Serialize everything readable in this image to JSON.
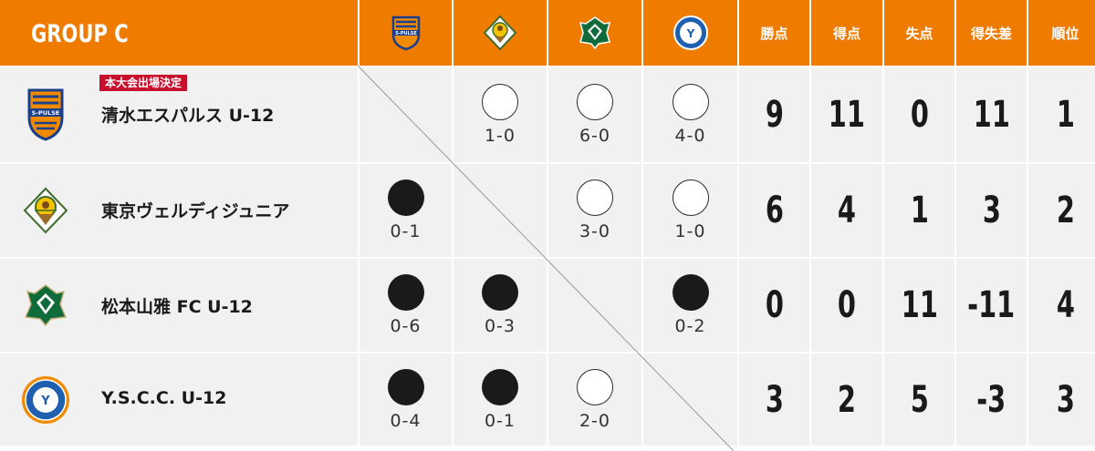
{
  "header": {
    "group_title": "GROUP C",
    "stat_labels": [
      "勝点",
      "得点",
      "失点",
      "得失差",
      "順位"
    ]
  },
  "teams": [
    {
      "name": "清水エスパルス U-12",
      "badge": "本大会出場決定",
      "crest_text": "S-PULSE",
      "results": [
        null,
        {
          "mark": "win",
          "score": "1-0"
        },
        {
          "mark": "win",
          "score": "6-0"
        },
        {
          "mark": "win",
          "score": "4-0"
        }
      ],
      "stats": [
        "9",
        "11",
        "0",
        "11",
        "1"
      ]
    },
    {
      "name": "東京ヴェルディジュニア",
      "badge": "",
      "crest_text": "VERDY",
      "results": [
        {
          "mark": "loss",
          "score": "0-1"
        },
        null,
        {
          "mark": "win",
          "score": "3-0"
        },
        {
          "mark": "win",
          "score": "1-0"
        }
      ],
      "stats": [
        "6",
        "4",
        "1",
        "3",
        "2"
      ]
    },
    {
      "name": "松本山雅 FC U-12",
      "badge": "",
      "crest_text": "YAMAGA",
      "results": [
        {
          "mark": "loss",
          "score": "0-6"
        },
        {
          "mark": "loss",
          "score": "0-3"
        },
        null,
        {
          "mark": "loss",
          "score": "0-2"
        }
      ],
      "stats": [
        "0",
        "0",
        "11",
        "-11",
        "4"
      ]
    },
    {
      "name": "Y.S.C.C. U-12",
      "badge": "",
      "crest_text": "YSCC",
      "results": [
        {
          "mark": "loss",
          "score": "0-4"
        },
        {
          "mark": "loss",
          "score": "0-1"
        },
        {
          "mark": "win",
          "score": "2-0"
        },
        null
      ],
      "stats": [
        "3",
        "2",
        "5",
        "-3",
        "3"
      ]
    }
  ],
  "colors": {
    "header_orange": "#ef7c00",
    "row_gray": "#f1f1f1",
    "badge_red": "#c8102e"
  },
  "icons": [
    "shimizu-s-pulse-crest-icon",
    "tokyo-verdy-crest-icon",
    "matsumoto-yamaga-crest-icon",
    "yscc-crest-icon"
  ]
}
